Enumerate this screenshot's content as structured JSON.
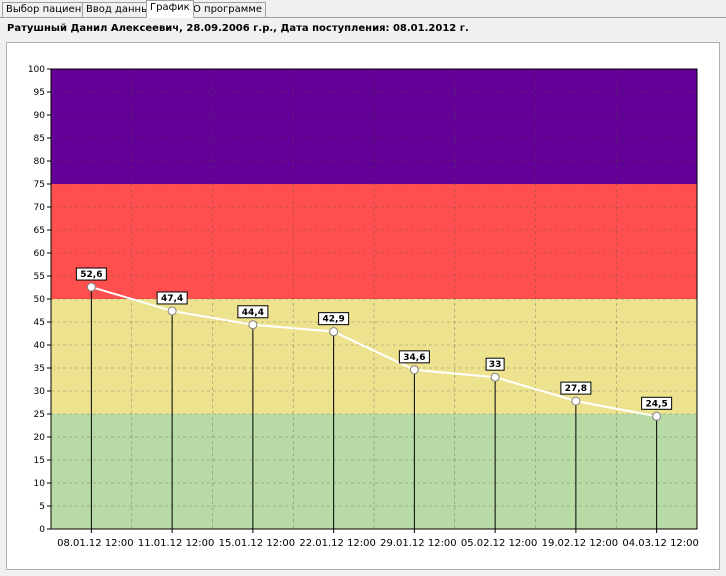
{
  "tabs": [
    {
      "label": "Выбор пациента",
      "active": false
    },
    {
      "label": "Ввод данных",
      "active": false
    },
    {
      "label": "График",
      "active": true
    },
    {
      "label": "О программе",
      "active": false
    }
  ],
  "patient_header": "Ратушный Данил Алексеевич, 28.09.2006 г.р., Дата поступления: 08.01.2012 г.",
  "chart_data": {
    "type": "line",
    "x": [
      "08.01.12 12:00",
      "11.01.12 12:00",
      "15.01.12 12:00",
      "22.01.12 12:00",
      "29.01.12 12:00",
      "05.02.12 12:00",
      "19.02.12 12:00",
      "04.03.12 12:00"
    ],
    "series": [
      {
        "values": [
          52.6,
          47.4,
          44.4,
          42.9,
          34.6,
          33,
          27.8,
          24.5
        ],
        "labels": [
          "52,6",
          "47,4",
          "44,4",
          "42,9",
          "34,6",
          "33",
          "27,8",
          "24,5"
        ],
        "color": "#ffffff"
      }
    ],
    "ylim": [
      0,
      100
    ],
    "ytick_step": 5,
    "yticks": [
      "0",
      "5",
      "10",
      "15",
      "20",
      "25",
      "30",
      "35",
      "40",
      "45",
      "50",
      "55",
      "60",
      "65",
      "70",
      "75",
      "80",
      "85",
      "90",
      "95",
      "100"
    ],
    "grid": true,
    "bands": [
      {
        "from": 0,
        "to": 25,
        "color": "#b8dba5"
      },
      {
        "from": 25,
        "to": 50,
        "color": "#ede38f"
      },
      {
        "from": 50,
        "to": 75,
        "color": "#ff4f4f"
      },
      {
        "from": 75,
        "to": 100,
        "color": "#640097"
      }
    ],
    "title": "",
    "xlabel": "",
    "ylabel": ""
  }
}
